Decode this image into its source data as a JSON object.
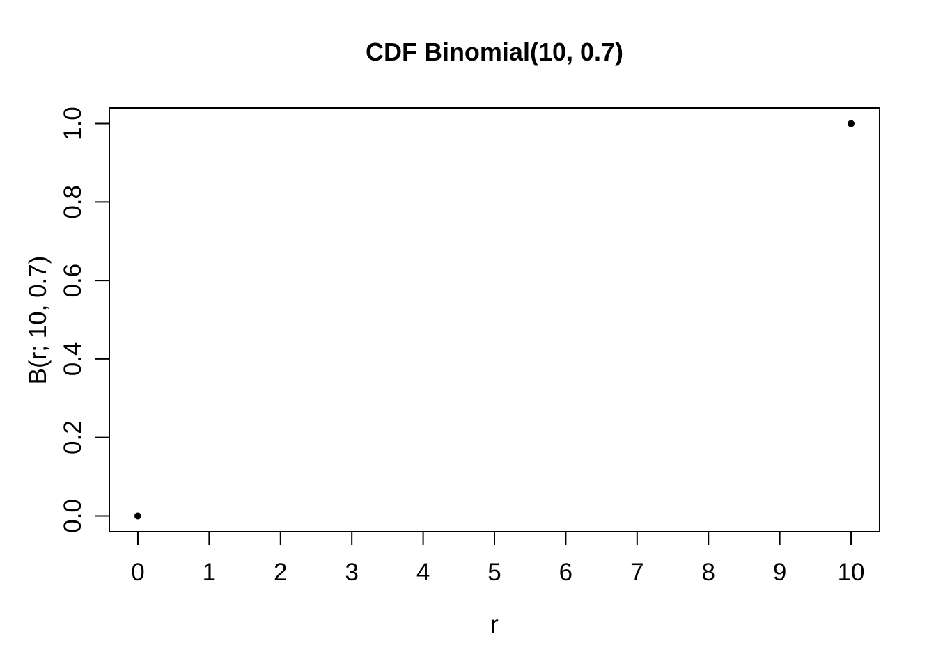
{
  "page": {
    "background": "#ffffff"
  },
  "chart_data": {
    "type": "scatter",
    "title": "CDF Binomial(10, 0.7)",
    "xlabel": "r",
    "ylabel": "B(r; 10, 0.7)",
    "points": [
      {
        "x": 0,
        "y": 0.0
      },
      {
        "x": 10,
        "y": 1.0
      }
    ],
    "x_tick_values": [
      0,
      1,
      2,
      3,
      4,
      5,
      6,
      7,
      8,
      9,
      10
    ],
    "x_tick_labels": [
      "0",
      "1",
      "2",
      "3",
      "4",
      "5",
      "6",
      "7",
      "8",
      "9",
      "10"
    ],
    "y_tick_values": [
      0.0,
      0.2,
      0.4,
      0.6,
      0.8,
      1.0
    ],
    "y_tick_labels": [
      "0.0",
      "0.2",
      "0.4",
      "0.6",
      "0.8",
      "1.0"
    ],
    "xlim": [
      -0.4,
      10.4
    ],
    "ylim": [
      -0.04,
      1.04
    ],
    "grid": false,
    "legend": "none",
    "marker": "filled-circle",
    "marker_radius": 5,
    "colors": {
      "points": "#000000",
      "axis": "#000000",
      "text": "#000000",
      "background": "#ffffff"
    }
  }
}
